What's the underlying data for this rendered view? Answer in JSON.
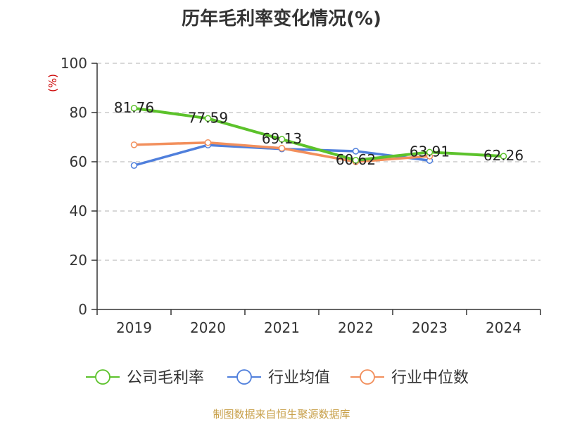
{
  "chart_data": {
    "type": "line",
    "title": "历年毛利率变化情况(%)",
    "ylabel": "(%)",
    "xlabel": "",
    "categories": [
      "2019",
      "2020",
      "2021",
      "2022",
      "2023",
      "2024"
    ],
    "ylim": [
      0,
      100
    ],
    "yticks": [
      0,
      20,
      40,
      60,
      80,
      100
    ],
    "grid": "horizontal dashed",
    "legend_position": "bottom",
    "series": [
      {
        "name": "公司毛利率",
        "color": "#5cc22b",
        "values": [
          81.76,
          77.59,
          69.13,
          60.62,
          63.91,
          62.26
        ],
        "labels": [
          "81.76",
          "77.59",
          "69.13",
          "60.62",
          "63.91",
          "62.26"
        ]
      },
      {
        "name": "行业均值",
        "color": "#4f7fdc",
        "values": [
          58.5,
          66.8,
          65.2,
          64.3,
          60.5,
          null
        ]
      },
      {
        "name": "行业中位数",
        "color": "#f28f5c",
        "values": [
          66.9,
          67.8,
          65.5,
          60.0,
          62.3,
          null
        ]
      }
    ]
  },
  "source_note": "制图数据来自恒生聚源数据库"
}
